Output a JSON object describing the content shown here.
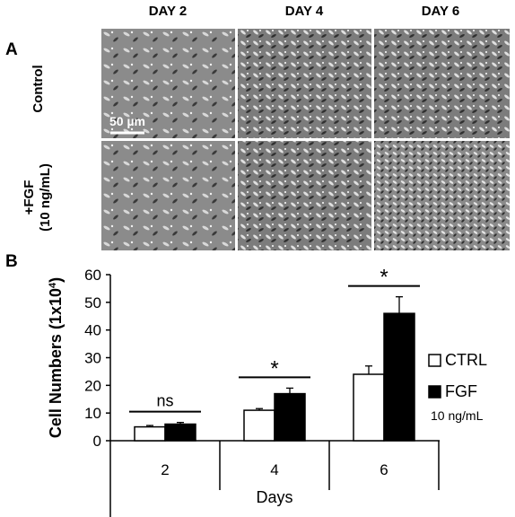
{
  "panel_a": {
    "label": "A",
    "columns": [
      "DAY 2",
      "DAY 4",
      "DAY 6"
    ],
    "rows": [
      {
        "label": "Control"
      },
      {
        "label_line1": "+FGF",
        "label_line2": "(10 ng/mL)"
      }
    ],
    "scale_bar_label": "50 µm",
    "image_bg": "#8a8a8a"
  },
  "panel_b": {
    "label": "B"
  },
  "chart_data": {
    "type": "bar",
    "categories": [
      "2",
      "4",
      "6"
    ],
    "xlabel": "Days",
    "ylabel": "Cell Numbers (1x10",
    "ylabel_sup": "4",
    "ylabel_close": ")",
    "ylim": [
      0,
      60
    ],
    "yticks": [
      "0",
      "10",
      "20",
      "30",
      "40",
      "50",
      "60"
    ],
    "series": [
      {
        "name": "CTRL",
        "values": [
          5,
          11,
          24
        ],
        "errors": [
          0.5,
          0.6,
          3
        ],
        "fill": "#ffffff",
        "stroke": "#000000"
      },
      {
        "name": "FGF",
        "values": [
          6,
          17,
          46
        ],
        "errors": [
          0.6,
          2,
          6
        ],
        "fill": "#000000",
        "stroke": "#000000"
      }
    ],
    "legend_note": "10 ng/mL",
    "legend_placement": "right",
    "significance": [
      "ns",
      "*",
      "*"
    ],
    "grid": false
  }
}
